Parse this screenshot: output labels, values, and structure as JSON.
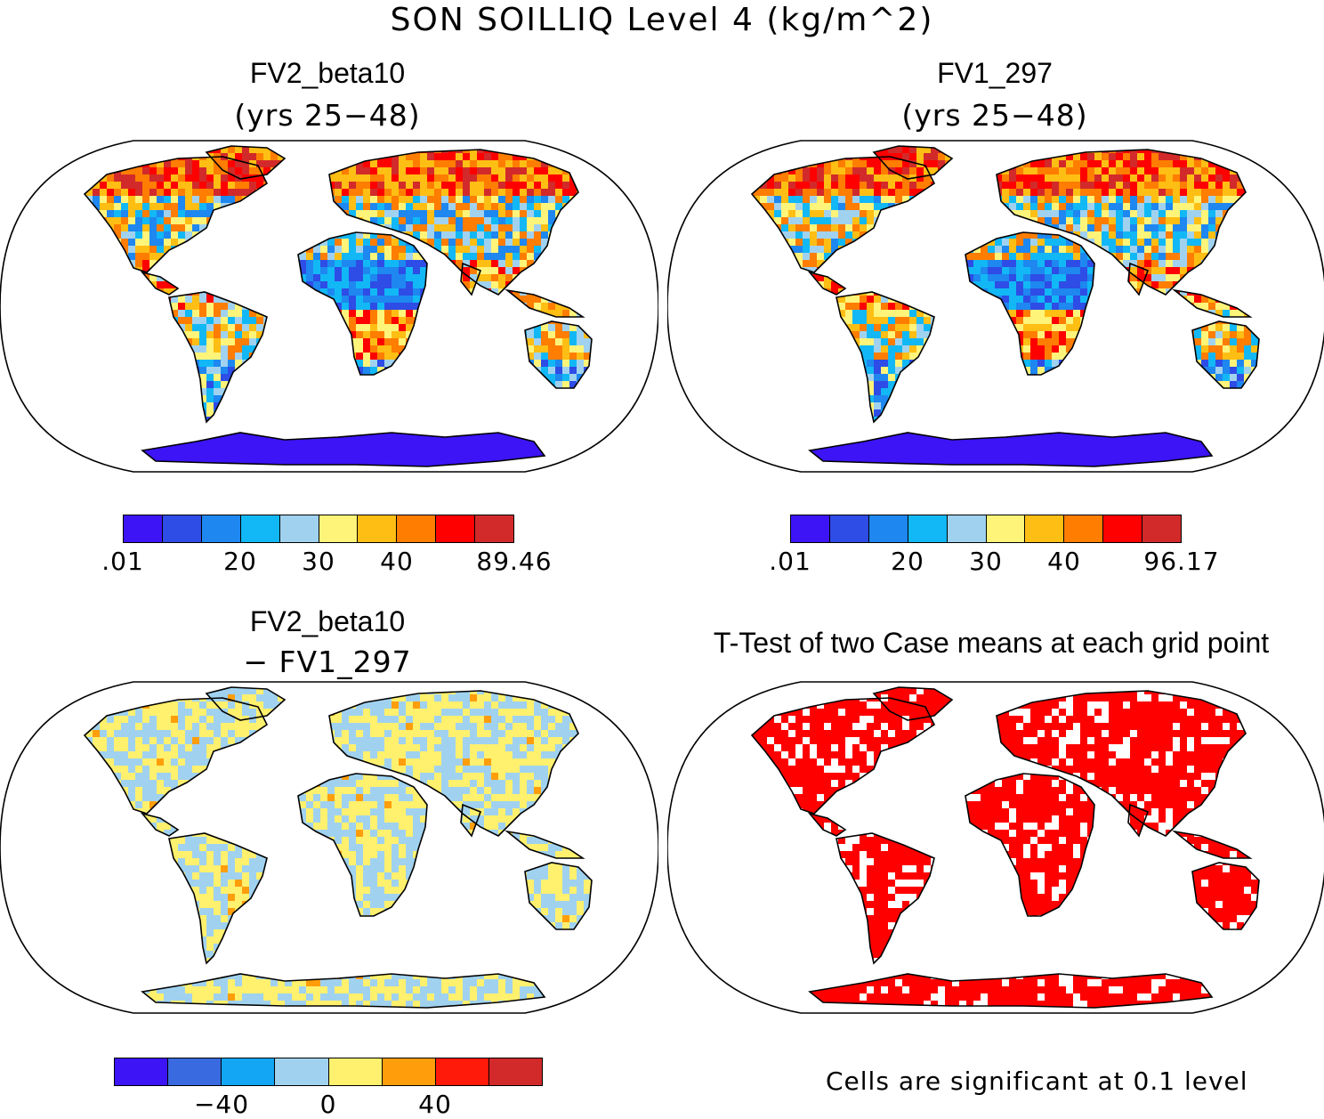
{
  "title": "SON SOILLIQ Level 4 (kg/m^2)",
  "panels": [
    {
      "title": "FV2_beta10",
      "subtitle": "(yrs 25−48)"
    },
    {
      "title": "FV1_297",
      "subtitle": "(yrs 25−48)"
    },
    {
      "title": "FV2_beta10",
      "subtitle": "− FV1_297"
    },
    {
      "title": "T-Test of two Case means at each grid point",
      "subtitle": ""
    }
  ],
  "colorbars": [
    {
      "colors": [
        "#3c14f5",
        "#2e4ce6",
        "#1e87f0",
        "#12b8f5",
        "#a0d2f0",
        "#fff47a",
        "#ffbe14",
        "#ff7d00",
        "#ff0000",
        "#d22a2a"
      ],
      "ticks": [
        ".01",
        "20",
        "30",
        "40",
        "89.46"
      ]
    },
    {
      "colors": [
        "#3c14f5",
        "#2e4ce6",
        "#1e87f0",
        "#12b8f5",
        "#a0d2f0",
        "#fff47a",
        "#ffbe14",
        "#ff7d00",
        "#ff0000",
        "#d22a2a"
      ],
      "ticks": [
        ".01",
        "20",
        "30",
        "40",
        "96.17"
      ]
    },
    {
      "colors": [
        "#3c14f5",
        "#3a6ae0",
        "#12a6f5",
        "#a0d2f0",
        "#fff06e",
        "#ff9e0a",
        "#ff1a0a",
        "#d22a2a"
      ],
      "ticks": [
        "−40",
        "0",
        "40"
      ]
    }
  ],
  "significance_note": "Cells are significant at 0.1 level"
}
